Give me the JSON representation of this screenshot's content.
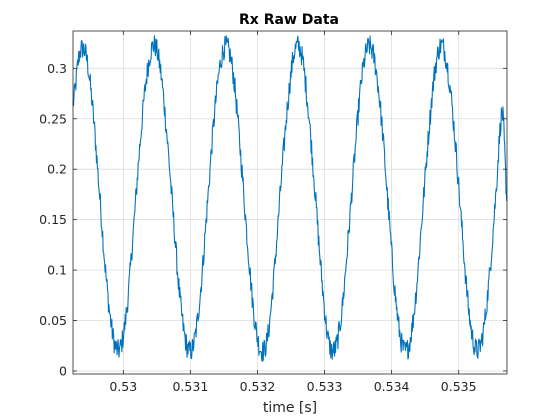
{
  "chart_data": {
    "type": "line",
    "title": "Rx Raw Data",
    "xlabel": "time [s]",
    "ylabel": "",
    "xlim": [
      0.52925,
      0.53572
    ],
    "ylim": [
      -0.003,
      0.337
    ],
    "xticks": [
      0.53,
      0.531,
      0.532,
      0.533,
      0.534,
      0.535
    ],
    "xtick_labels": [
      "0.53",
      "0.531",
      "0.532",
      "0.533",
      "0.534",
      "0.535"
    ],
    "yticks": [
      0,
      0.05,
      0.1,
      0.15,
      0.2,
      0.25,
      0.3
    ],
    "ytick_labels": [
      "0",
      "0.05",
      "0.1",
      "0.15",
      "0.2",
      "0.25",
      "0.3"
    ],
    "grid": true,
    "series": [
      {
        "name": "",
        "color": "#0072BD",
        "x": [
          0.52925,
          0.52935,
          0.52945,
          0.52955,
          0.52965,
          0.52975,
          0.52985,
          0.52995,
          0.53005,
          0.53015,
          0.53025,
          0.53035,
          0.53045,
          0.53055,
          0.53065,
          0.53075,
          0.53085,
          0.53095,
          0.53105,
          0.53115,
          0.53125,
          0.53135,
          0.53145,
          0.53155,
          0.53165,
          0.53175,
          0.53185,
          0.53195,
          0.53205,
          0.53215,
          0.53225,
          0.53235,
          0.53245,
          0.53255,
          0.53265,
          0.53275,
          0.53285,
          0.53295,
          0.53305,
          0.53315,
          0.53325,
          0.53335,
          0.53345,
          0.53355,
          0.53365,
          0.53375,
          0.53385,
          0.53395,
          0.53405,
          0.53415,
          0.53425,
          0.53435,
          0.53445,
          0.53455,
          0.53465,
          0.53475,
          0.53485,
          0.53495,
          0.53505,
          0.53515,
          0.53525,
          0.53535,
          0.53545,
          0.53555,
          0.53565,
          0.53572
        ],
        "y": [
          0.265,
          0.315,
          0.311,
          0.255,
          0.172,
          0.088,
          0.033,
          0.022,
          0.06,
          0.139,
          0.226,
          0.293,
          0.323,
          0.3,
          0.234,
          0.149,
          0.068,
          0.024,
          0.027,
          0.078,
          0.162,
          0.248,
          0.306,
          0.321,
          0.288,
          0.214,
          0.129,
          0.055,
          0.021,
          0.033,
          0.098,
          0.185,
          0.264,
          0.316,
          0.316,
          0.264,
          0.185,
          0.098,
          0.033,
          0.021,
          0.055,
          0.129,
          0.214,
          0.288,
          0.321,
          0.306,
          0.248,
          0.162,
          0.078,
          0.027,
          0.024,
          0.068,
          0.149,
          0.234,
          0.3,
          0.323,
          0.293,
          0.226,
          0.139,
          0.06,
          0.022,
          0.033,
          0.088,
          0.172,
          0.255,
          0.17
        ]
      }
    ]
  }
}
